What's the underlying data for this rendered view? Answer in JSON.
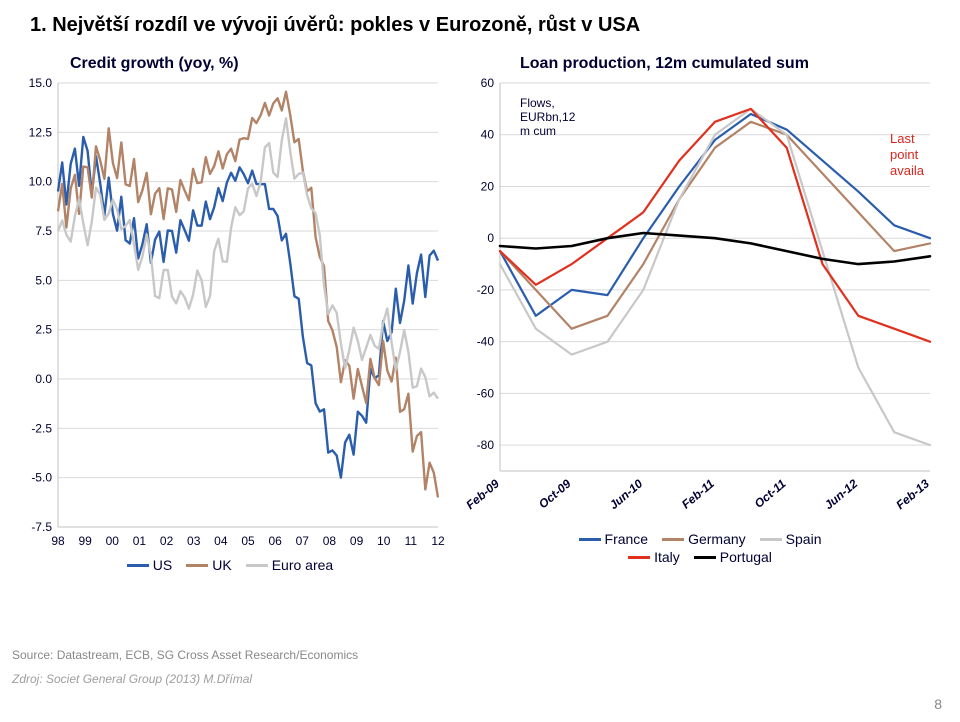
{
  "slide": {
    "title": "1. Největší rozdíl ve vývoji úvěrů: pokles v Eurozoně, růst v USA",
    "page_number": "8",
    "source": "Source: Datastream, ECB, SG Cross Asset Research/Economics",
    "credit": "Zdroj: Societ General Group (2013) M.Dřímal"
  },
  "left_chart": {
    "title": "Credit growth (yoy, %)",
    "type": "line",
    "background": "#ffffff",
    "plot_border": "#c0c0c0",
    "grid_color": "#d9d9d9",
    "y": {
      "min": -7.5,
      "max": 15.0,
      "step": 2.5,
      "ticks": [
        -7.5,
        -5.0,
        -2.5,
        0.0,
        2.5,
        5.0,
        7.5,
        10.0,
        12.5,
        15.0
      ]
    },
    "x": {
      "labels": [
        "98",
        "99",
        "00",
        "01",
        "02",
        "03",
        "04",
        "05",
        "06",
        "07",
        "08",
        "09",
        "10",
        "11",
        "12"
      ]
    },
    "series": [
      {
        "name": "US",
        "color": "#2b5dad",
        "width": 2.4,
        "y": [
          9.5,
          11.5,
          9.0,
          7.0,
          6.8,
          7.5,
          8.5,
          10.5,
          10.0,
          7.0,
          0.0,
          -4.5,
          -2.0,
          2.5,
          5.0,
          6.0
        ]
      },
      {
        "name": "UK",
        "color": "#b28367",
        "width": 2.4,
        "y": [
          8.5,
          10.0,
          11.5,
          10.0,
          9.0,
          9.5,
          10.8,
          11.5,
          13.5,
          14.2,
          9.0,
          1.0,
          -0.5,
          1.0,
          -2.5,
          -6.0
        ]
      },
      {
        "name": "Euro area",
        "color": "#c8c8c8",
        "width": 2.4,
        "y": [
          7.5,
          8.0,
          9.0,
          7.0,
          5.0,
          4.0,
          5.0,
          8.0,
          10.5,
          12.0,
          9.0,
          2.0,
          1.5,
          2.5,
          0.5,
          -1.0
        ]
      }
    ],
    "legend": [
      {
        "label": "US",
        "color": "#2b5dad"
      },
      {
        "label": "UK",
        "color": "#b28367"
      },
      {
        "label": "Euro area",
        "color": "#c8c8c8"
      }
    ]
  },
  "right_chart": {
    "title": "Loan production, 12m cumulated sum",
    "type": "line",
    "background": "#ffffff",
    "plot_border": "#c0c0c0",
    "grid_color": "#d9d9d9",
    "flow_label": [
      "Flows,",
      "EURbn,12",
      "m cum"
    ],
    "last_point_label": [
      "Last",
      "point",
      "availa"
    ],
    "y": {
      "min": -90,
      "max": 60,
      "step": 20,
      "ticks": [
        -80,
        -60,
        -40,
        -20,
        0,
        20,
        40,
        60
      ]
    },
    "x": {
      "labels": [
        "Feb-09",
        "Oct-09",
        "Jun-10",
        "Feb-11",
        "Oct-11",
        "Jun-12",
        "Feb-13"
      ]
    },
    "series": [
      {
        "name": "France",
        "color": "#2b5dad",
        "width": 2.2,
        "y": [
          -5,
          -30,
          -20,
          -22,
          0,
          20,
          38,
          48,
          42,
          30,
          18,
          5,
          0
        ]
      },
      {
        "name": "Germany",
        "color": "#b28367",
        "width": 2.2,
        "y": [
          -5,
          -20,
          -35,
          -30,
          -10,
          15,
          35,
          45,
          40,
          25,
          10,
          -5,
          -2
        ]
      },
      {
        "name": "Spain",
        "color": "#c8c8c8",
        "width": 2.2,
        "y": [
          -10,
          -35,
          -45,
          -40,
          -20,
          15,
          40,
          50,
          40,
          -5,
          -50,
          -75,
          -80
        ]
      },
      {
        "name": "Italy",
        "color": "#e0301e",
        "width": 2.2,
        "y": [
          -5,
          -18,
          -10,
          0,
          10,
          30,
          45,
          50,
          35,
          -10,
          -30,
          -35,
          -40
        ]
      },
      {
        "name": "Portugal",
        "color": "#000000",
        "width": 2.6,
        "y": [
          -3,
          -4,
          -3,
          0,
          2,
          1,
          0,
          -2,
          -5,
          -8,
          -10,
          -9,
          -7
        ]
      }
    ],
    "legend": [
      {
        "label": "France",
        "color": "#2b5dad"
      },
      {
        "label": "Germany",
        "color": "#b28367"
      },
      {
        "label": "Spain",
        "color": "#c8c8c8"
      },
      {
        "label": "Italy",
        "color": "#e0301e"
      },
      {
        "label": "Portugal",
        "color": "#000000"
      }
    ]
  }
}
